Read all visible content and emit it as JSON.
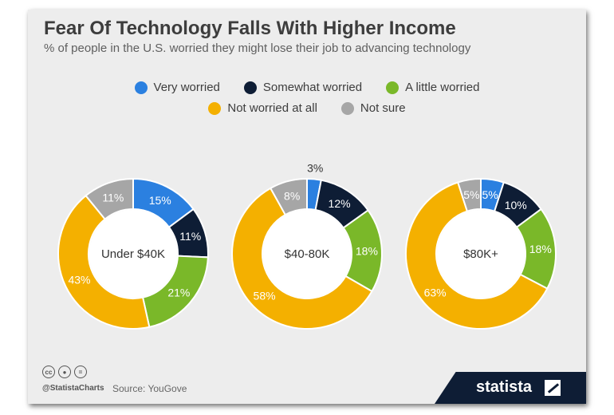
{
  "title": "Fear Of Technology Falls With Higher Income",
  "subtitle": "% of people in the U.S. worried they might lose their job to advancing technology",
  "legend": {
    "row1": [
      {
        "label": "Very worried",
        "color": "#2b80e0"
      },
      {
        "label": "Somewhat worried",
        "color": "#0e1d35"
      },
      {
        "label": "A little worried",
        "color": "#7ab829"
      }
    ],
    "row2": [
      {
        "label": "Not worried at all",
        "color": "#f4b000"
      },
      {
        "label": "Not sure",
        "color": "#a6a6a6"
      }
    ]
  },
  "chart_data": [
    {
      "type": "pie",
      "center_label": "Under $40K",
      "categories": [
        "Very worried",
        "Somewhat worried",
        "A little worried",
        "Not worried at all",
        "Not sure"
      ],
      "values": [
        15,
        11,
        21,
        43,
        11
      ],
      "labels": [
        "15%",
        "11%",
        "21%",
        "43%",
        "11%"
      ],
      "colors": [
        "#2b80e0",
        "#0e1d35",
        "#7ab829",
        "#f4b000",
        "#a6a6a6"
      ]
    },
    {
      "type": "pie",
      "center_label": "$40-80K",
      "categories": [
        "Very worried",
        "Somewhat worried",
        "A little worried",
        "Not worried at all",
        "Not sure"
      ],
      "values": [
        3,
        12,
        18,
        58,
        8
      ],
      "labels": [
        "3%",
        "12%",
        "18%",
        "58%",
        "8%"
      ],
      "colors": [
        "#2b80e0",
        "#0e1d35",
        "#7ab829",
        "#f4b000",
        "#a6a6a6"
      ]
    },
    {
      "type": "pie",
      "center_label": "$80K+",
      "categories": [
        "Very worried",
        "Somewhat worried",
        "A little worried",
        "Not worried at all",
        "Not sure"
      ],
      "values": [
        5,
        10,
        18,
        63,
        5
      ],
      "labels": [
        "5%",
        "10%",
        "18%",
        "63%",
        "5%"
      ],
      "colors": [
        "#2b80e0",
        "#0e1d35",
        "#7ab829",
        "#f4b000",
        "#a6a6a6"
      ]
    }
  ],
  "footer": {
    "handle": "@StatistaCharts",
    "source": "Source: YouGove",
    "brand": "statista",
    "icons": [
      "cc-icon",
      "by-icon",
      "nd-icon"
    ]
  }
}
